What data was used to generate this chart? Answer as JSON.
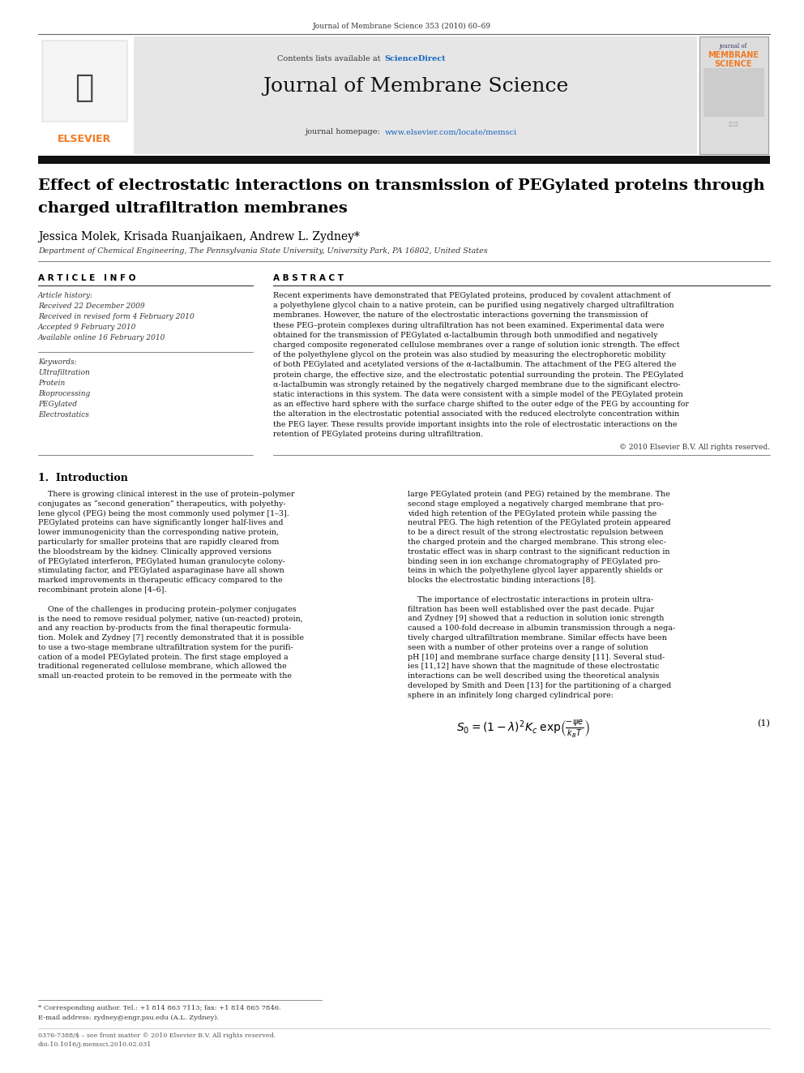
{
  "page_width": 9.92,
  "page_height": 13.23,
  "dpi": 100,
  "bg_color": "#ffffff",
  "journal_ref": "Journal of Membrane Science 353 (2010) 60–69",
  "contents_line": "Contents lists available at ",
  "science_direct_text": "ScienceDirect",
  "journal_title": "Journal of Membrane Science",
  "journal_homepage_prefix": "journal homepage: ",
  "journal_homepage_link": "www.elsevier.com/locate/memsci",
  "elsevier_text": "ELSEVIER",
  "paper_title_line1": "Effect of electrostatic interactions on transmission of PEGylated proteins through",
  "paper_title_line2": "charged ultrafiltration membranes",
  "authors": "Jessica Molek, Krisada Ruanjaikaen, Andrew L. Zydney*",
  "affiliation": "Department of Chemical Engineering, The Pennsylvania State University, University Park, PA 16802, United States",
  "article_info_header": "A R T I C L E   I N F O",
  "abstract_header": "A B S T R A C T",
  "history_label": "Article history:",
  "received1": "Received 22 December 2009",
  "received2": "Received in revised form 4 February 2010",
  "accepted": "Accepted 9 February 2010",
  "available": "Available online 16 February 2010",
  "keywords_label": "Keywords:",
  "keywords": [
    "Ultrafiltration",
    "Protein",
    "Bioprocessing",
    "PEGylated",
    "Electrostatics"
  ],
  "abstract_lines": [
    "Recent experiments have demonstrated that PEGylated proteins, produced by covalent attachment of",
    "a polyethylene glycol chain to a native protein, can be purified using negatively charged ultrafiltration",
    "membranes. However, the nature of the electrostatic interactions governing the transmission of",
    "these PEG–protein complexes during ultrafiltration has not been examined. Experimental data were",
    "obtained for the transmission of PEGylated α-lactalbumin through both unmodified and negatively",
    "charged composite regenerated cellulose membranes over a range of solution ionic strength. The effect",
    "of the polyethylene glycol on the protein was also studied by measuring the electrophoretic mobility",
    "of both PEGylated and acetylated versions of the α-lactalbumin. The attachment of the PEG altered the",
    "protein charge, the effective size, and the electrostatic potential surrounding the protein. The PEGylated",
    "α-lactalbumin was strongly retained by the negatively charged membrane due to the significant electro-",
    "static interactions in this system. The data were consistent with a simple model of the PEGylated protein",
    "as an effective hard sphere with the surface charge shifted to the outer edge of the PEG by accounting for",
    "the alteration in the electrostatic potential associated with the reduced electrolyte concentration within",
    "the PEG layer. These results provide important insights into the role of electrostatic interactions on the",
    "retention of PEGylated proteins during ultrafiltration."
  ],
  "copyright": "© 2010 Elsevier B.V. All rights reserved.",
  "intro_header": "1.  Introduction",
  "intro_col1_lines": [
    "    There is growing clinical interest in the use of protein–polymer",
    "conjugates as “second generation” therapeutics, with polyethy-",
    "lene glycol (PEG) being the most commonly used polymer [1–3].",
    "PEGylated proteins can have significantly longer half-lives and",
    "lower immunogenicity than the corresponding native protein,",
    "particularly for smaller proteins that are rapidly cleared from",
    "the bloodstream by the kidney. Clinically approved versions",
    "of PEGylated interferon, PEGylated human granulocyte colony-",
    "stimulating factor, and PEGylated asparaginase have all shown",
    "marked improvements in therapeutic efficacy compared to the",
    "recombinant protein alone [4–6].",
    "",
    "    One of the challenges in producing protein–polymer conjugates",
    "is the need to remove residual polymer, native (un-reacted) protein,",
    "and any reaction by-products from the final therapeutic formula-",
    "tion. Molek and Zydney [7] recently demonstrated that it is possible",
    "to use a two-stage membrane ultrafiltration system for the purifi-",
    "cation of a model PEGylated protein. The first stage employed a",
    "traditional regenerated cellulose membrane, which allowed the",
    "small un-reacted protein to be removed in the permeate with the"
  ],
  "intro_col2_lines": [
    "large PEGylated protein (and PEG) retained by the membrane. The",
    "second stage employed a negatively charged membrane that pro-",
    "vided high retention of the PEGylated protein while passing the",
    "neutral PEG. The high retention of the PEGylated protein appeared",
    "to be a direct result of the strong electrostatic repulsion between",
    "the charged protein and the charged membrane. This strong elec-",
    "trostatic effect was in sharp contrast to the significant reduction in",
    "binding seen in ion exchange chromatography of PEGylated pro-",
    "teins in which the polyethylene glycol layer apparently shields or",
    "blocks the electrostatic binding interactions [8].",
    "",
    "    The importance of electrostatic interactions in protein ultra-",
    "filtration has been well established over the past decade. Pujar",
    "and Zydney [9] showed that a reduction in solution ionic strength",
    "caused a 100-fold decrease in albumin transmission through a nega-",
    "tively charged ultrafiltration membrane. Similar effects have been",
    "seen with a number of other proteins over a range of solution",
    "pH [10] and membrane surface charge density [11]. Several stud-",
    "ies [11,12] have shown that the magnitude of these electrostatic",
    "interactions can be well described using the theoretical analysis",
    "developed by Smith and Deen [13] for the partitioning of a charged",
    "sphere in an infinitely long charged cylindrical pore:"
  ],
  "footnote1": "* Corresponding author. Tel.: +1 814 863 7113; fax: +1 814 865 7846.",
  "footnote2": "E-mail address: zydney@engr.psu.edu (A.L. Zydney).",
  "issn_line": "0376-7388/$ – see front matter © 2010 Elsevier B.V. All rights reserved.",
  "doi_line": "doi:10.1016/j.memsci.2010.02.031",
  "orange": "#F47920",
  "blue": "#1565C0",
  "gray_bg": "#E6E6E6",
  "dark_text": "#000000",
  "mid_text": "#333333",
  "light_text": "#555555"
}
